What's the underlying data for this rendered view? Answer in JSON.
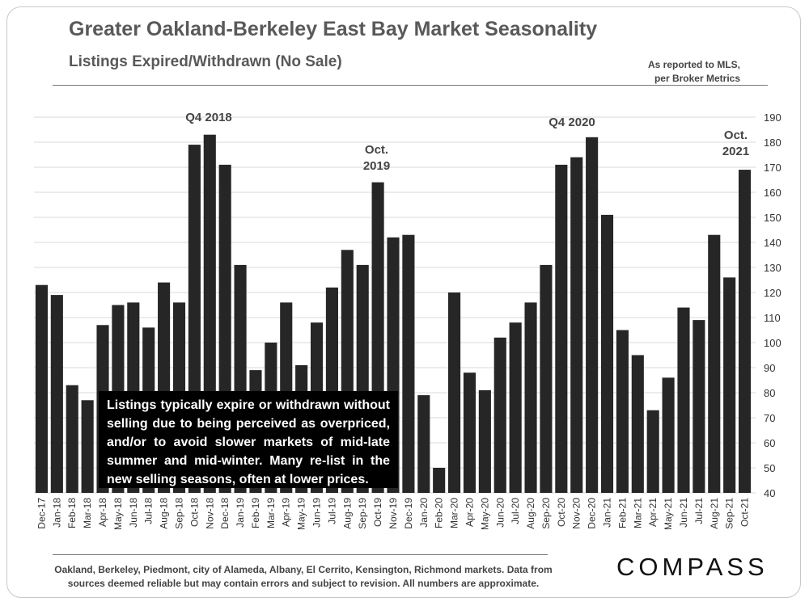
{
  "header": {
    "title": "Greater Oakland-Berkeley East Bay Market Seasonality",
    "subtitle": "Listings Expired/Withdrawn (No Sale)",
    "source_line1": "As reported to MLS,",
    "source_line2": "per Broker Metrics"
  },
  "annotations": {
    "q4_2018": "Q4 2018",
    "oct_2019_line1": "Oct.",
    "oct_2019_line2": "2019",
    "q4_2020": "Q4 2020",
    "oct_2021_line1": "Oct.",
    "oct_2021_line2": "2021"
  },
  "callout": {
    "text": "Listings typically expire or withdrawn without selling due to being perceived as overpriced, and/or to avoid slower markets of mid-late summer and mid-winter. Many re-list in the new selling seasons, often at lower prices."
  },
  "footer": {
    "line1": "Oakland, Berkeley, Piedmont, city of Alameda, Albany, El Cerrito, Kensington, Richmond markets. Data from",
    "line2": "sources deemed reliable but may contain errors and subject to revision. All numbers are approximate."
  },
  "logo": {
    "text": "COMPASS"
  },
  "colors": {
    "bar": "#262626",
    "grid": "#d9d9d9"
  },
  "chart_data": {
    "type": "bar",
    "title": "Listings Expired/Withdrawn (No Sale)",
    "xlabel": "",
    "ylabel": "",
    "ylim": [
      40,
      190
    ],
    "yticks": [
      40,
      50,
      60,
      70,
      80,
      90,
      100,
      110,
      120,
      130,
      140,
      150,
      160,
      170,
      180,
      190
    ],
    "y_axis_position": "right",
    "grid": true,
    "categories": [
      "Dec-17",
      "Jan-18",
      "Feb-18",
      "Mar-18",
      "Apr-18",
      "May-18",
      "Jun-18",
      "Jul-18",
      "Aug-18",
      "Sep-18",
      "Oct-18",
      "Nov-18",
      "Dec-18",
      "Jan-19",
      "Feb-19",
      "Mar-19",
      "Apr-19",
      "May-19",
      "Jun-19",
      "Jul-19",
      "Aug-19",
      "Sep-19",
      "Oct-19",
      "Nov-19",
      "Dec-19",
      "Jan-20",
      "Feb-20",
      "Mar-20",
      "Apr-20",
      "May-20",
      "Jun-20",
      "Jul-20",
      "Aug-20",
      "Sep-20",
      "Oct-20",
      "Nov-20",
      "Dec-20",
      "Jan-21",
      "Feb-21",
      "Mar-21",
      "Apr-21",
      "May-21",
      "Jun-21",
      "Jul-21",
      "Aug-21",
      "Sep-21",
      "Oct-21"
    ],
    "values": [
      123,
      119,
      83,
      77,
      107,
      115,
      116,
      106,
      124,
      116,
      179,
      183,
      171,
      131,
      89,
      100,
      116,
      91,
      108,
      122,
      137,
      131,
      164,
      142,
      143,
      79,
      50,
      120,
      88,
      81,
      102,
      108,
      116,
      131,
      171,
      174,
      182,
      151,
      105,
      95,
      73,
      86,
      114,
      109,
      143,
      126,
      169
    ]
  }
}
